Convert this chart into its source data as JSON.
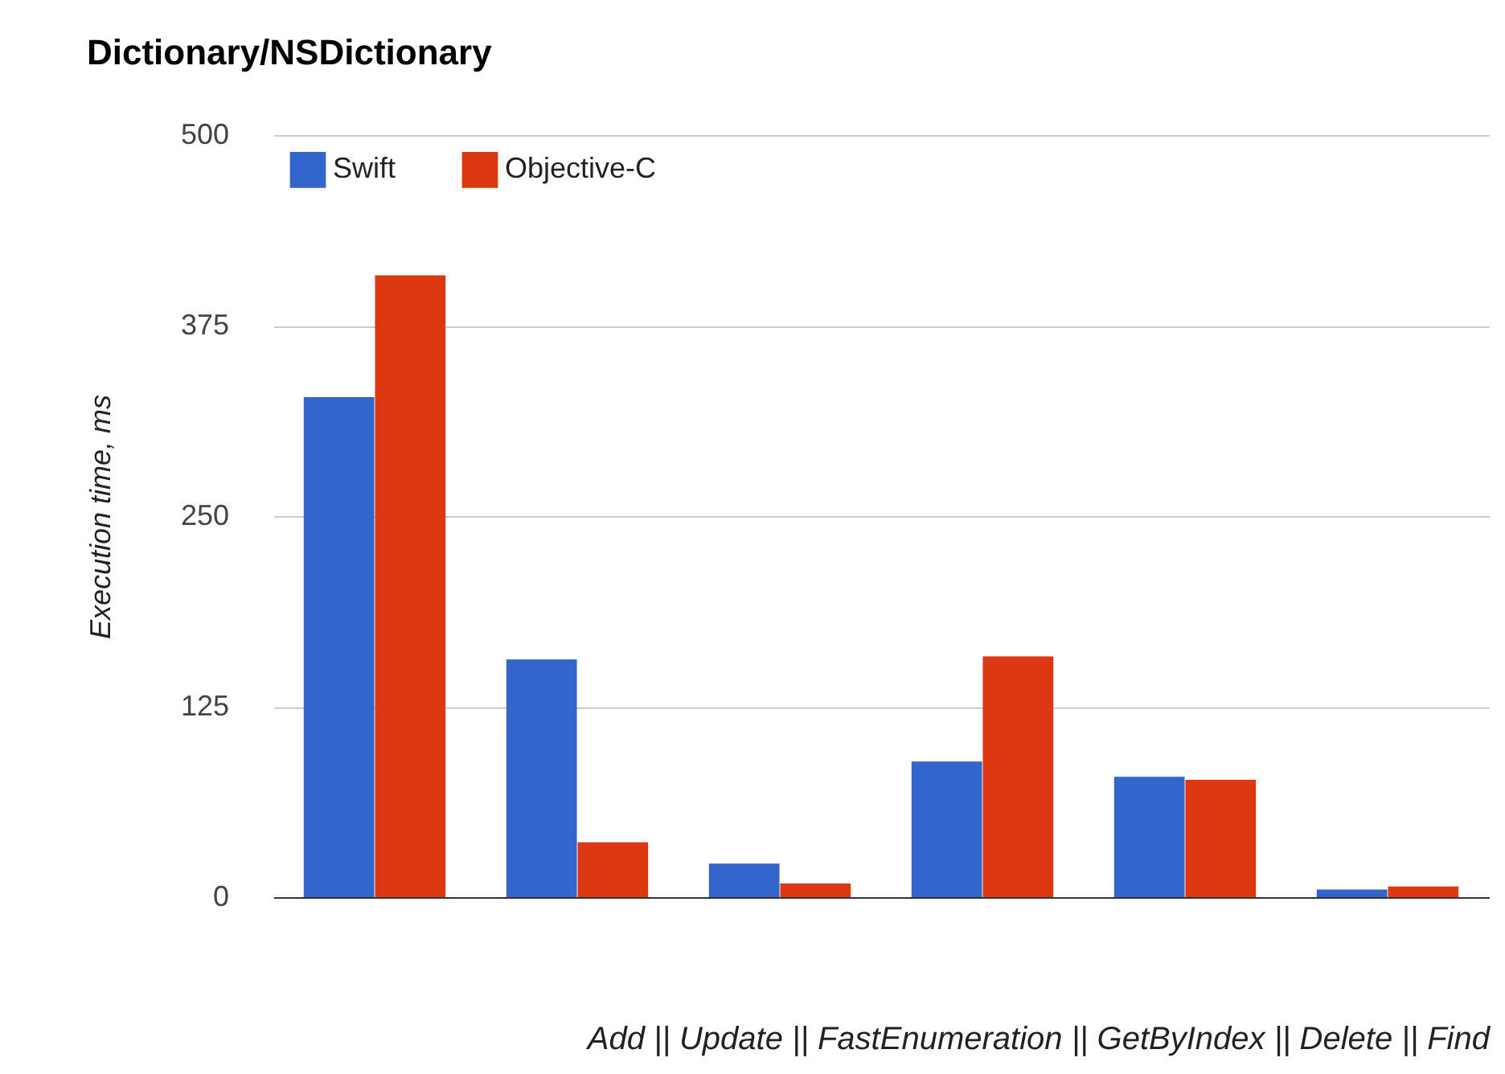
{
  "chart_data": {
    "type": "bar",
    "title": "Dictionary/NSDictionary",
    "xlabel": "Add || Update || FastEnumeration || GetByIndex || Delete || Find",
    "ylabel": "Execution time, ms",
    "categories": [
      null,
      null,
      null,
      null,
      null,
      null
    ],
    "series": [
      {
        "name": "Swift",
        "color": "#3366cc",
        "values": [
          328,
          156,
          22,
          89,
          79,
          5
        ]
      },
      {
        "name": "Objective-C",
        "color": "#dc3912",
        "values": [
          408,
          36,
          9,
          158,
          77,
          7
        ]
      }
    ],
    "ylim": [
      0,
      500
    ],
    "yticks": [
      0,
      125,
      250,
      375,
      500
    ],
    "grid": "y",
    "legend": "top left"
  }
}
